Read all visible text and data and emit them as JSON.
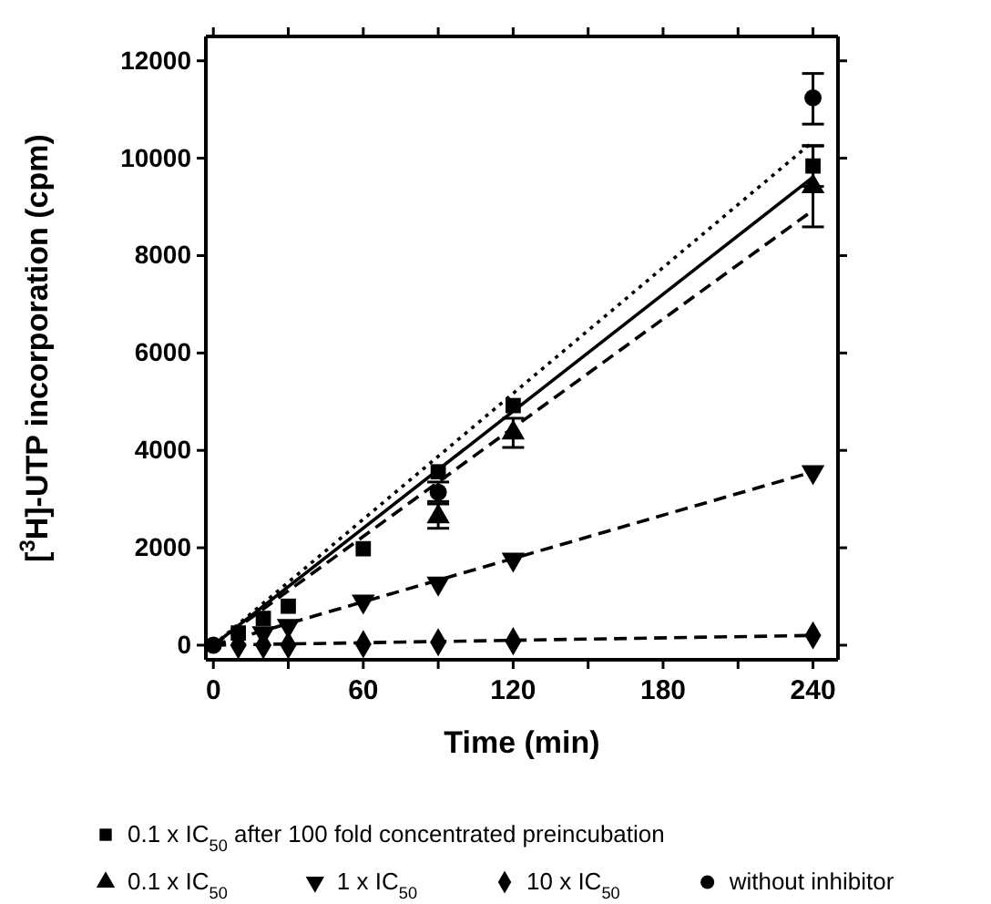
{
  "chart_data": {
    "type": "scatter",
    "xlabel": "Time (min)",
    "ylabel": "[$^{3}$H]-UTP incorporation (cpm)",
    "xlim": [
      -3,
      250
    ],
    "ylim": [
      -300,
      12500
    ],
    "xticks": [
      0,
      {
        "value": 30,
        "label": null
      },
      60,
      {
        "value": 90,
        "label": null
      },
      120,
      {
        "value": 150,
        "label": null
      },
      180,
      {
        "value": 210,
        "label": null
      },
      240
    ],
    "yticks": [
      0,
      2000,
      4000,
      6000,
      8000,
      10000,
      12000
    ],
    "legend": "bottom",
    "grid": false,
    "series": [
      {
        "name": "0.1 x IC$_{50}$ after 100 fold concentrated preincubation",
        "color": "#000000",
        "marker": "square",
        "x": [
          10,
          20,
          30,
          60,
          90,
          120,
          240
        ],
        "values": [
          250,
          550,
          800,
          1980,
          3560,
          4920,
          9840
        ],
        "errors": [
          null,
          null,
          null,
          null,
          null,
          null,
          [
            9420,
            10260
          ]
        ]
      },
      {
        "name": "0.1 x IC$_{50}$",
        "color": "#000000",
        "marker": "triangle",
        "x": [
          90,
          120,
          240
        ],
        "values": [
          2640,
          4360,
          9420
        ],
        "errors": [
          [
            2400,
            2900
          ],
          [
            4060,
            4660
          ],
          [
            8590,
            10250
          ]
        ]
      },
      {
        "name": "1 x IC$_{50}$",
        "color": "#000000",
        "x": [
          20,
          30,
          60,
          90,
          120,
          240
        ],
        "values": [
          250,
          400,
          900,
          1270,
          1760,
          3560
        ]
      },
      {
        "name": "10 x IC$_{50}$",
        "color": "#000000",
        "marker": "diamond",
        "x": [
          10,
          20,
          30,
          60,
          90,
          120,
          240
        ],
        "values": [
          0,
          0,
          0,
          20,
          60,
          80,
          200
        ]
      },
      {
        "name": "without inhibitor",
        "color": "#000000",
        "marker": "circle",
        "x": [
          0,
          90,
          240
        ],
        "values": [
          0,
          3140,
          11240
        ],
        "errors": [
          null,
          [
            2950,
            3350
          ],
          [
            10700,
            11740
          ]
        ]
      },
      {
        "type": "line",
        "color": "#000000",
        "line_style": "solid",
        "marker": "none",
        "x": [
          0,
          240
        ],
        "values": [
          0,
          9610
        ]
      },
      {
        "type": "line",
        "color": "#000000",
        "line_style": "dashed",
        "marker": "none",
        "x": [
          0,
          240
        ],
        "values": [
          0,
          8930
        ]
      },
      {
        "type": "line",
        "color": "#000000",
        "line_style": "dashed",
        "marker": "none",
        "x": [
          0,
          240
        ],
        "values": [
          0,
          3560
        ]
      },
      {
        "type": "line",
        "color": "#000000",
        "line_style": "dashed",
        "marker": "none",
        "x": [
          0,
          240
        ],
        "values": [
          0,
          200
        ]
      },
      {
        "type": "line",
        "color": "#000000",
        "line_style": "dotted",
        "marker": "none",
        "x": [
          0,
          240
        ],
        "values": [
          0,
          10340
        ]
      }
    ]
  }
}
